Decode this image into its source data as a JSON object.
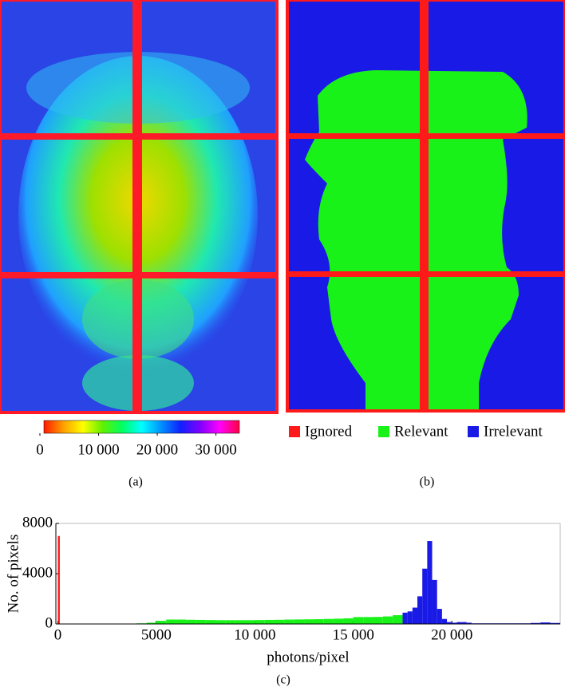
{
  "chart_data": [
    {
      "type": "colorbar",
      "caption": "(a)",
      "xlim": [
        0,
        34000
      ],
      "xticks": [
        0,
        {
          "value": 10000,
          "label": "10 000"
        },
        {
          "value": 20000,
          "label": "20 000"
        },
        {
          "value": 30000,
          "label": "30 000"
        }
      ],
      "colors": [
        "#ff1a00",
        "#ffa000",
        "#ffff00",
        "#60f000",
        "#00ff60",
        "#00ffff",
        "#0090ff",
        "#1020ff",
        "#8000ff",
        "#ff00ff",
        "#ff0040"
      ]
    },
    {
      "type": "mask",
      "caption": "(b)",
      "series": [
        {
          "name": "Ignored",
          "color": "#ff1a1a"
        },
        {
          "name": "Relevant",
          "color": "#19f219"
        },
        {
          "name": "Irrelevant",
          "color": "#1a1ae6"
        }
      ]
    },
    {
      "type": "histogram",
      "caption": "(c)",
      "xlabel": "photons/pixel",
      "ylabel": "No. of pixels",
      "xlim": [
        -100,
        25500
      ],
      "ylim": [
        0,
        8000
      ],
      "xticks": [
        0,
        5000,
        {
          "value": 10000,
          "label": "10 000"
        },
        {
          "value": 15000,
          "label": "15 000"
        },
        {
          "value": 20000,
          "label": "20 000"
        }
      ],
      "yticks": [
        0,
        4000,
        8000
      ],
      "series": [
        {
          "name": "Ignored",
          "color": "#ff1a1a",
          "bins": [
            0,
            100
          ],
          "values": [
            7000
          ]
        },
        {
          "name": "Relevant",
          "color": "#19f219",
          "bins": [
            4000,
            4500,
            5000,
            5500,
            6000,
            6500,
            7000,
            7500,
            8000,
            8500,
            9000,
            9500,
            10000,
            10500,
            11000,
            11500,
            12000,
            12500,
            13000,
            13500,
            14000,
            14500,
            15000,
            15500,
            16000,
            16500,
            17000,
            17500
          ],
          "values": [
            50,
            100,
            250,
            350,
            350,
            330,
            320,
            310,
            300,
            300,
            300,
            300,
            310,
            320,
            330,
            350,
            360,
            370,
            380,
            400,
            420,
            450,
            550,
            550,
            560,
            600,
            700
          ]
        },
        {
          "name": "Irrelevant",
          "color": "#1a1ae6",
          "bins": [
            17500,
            17750,
            18000,
            18250,
            18500,
            18750,
            19000,
            19250,
            19500,
            19750,
            20000,
            20250,
            20500,
            20750,
            21000,
            21500,
            22000,
            22500,
            23000,
            23500,
            24000,
            24500,
            25000,
            25500
          ],
          "values": [
            900,
            1000,
            1300,
            2200,
            4400,
            6600,
            3500,
            1200,
            400,
            150,
            100,
            150,
            150,
            100,
            50,
            50,
            50,
            50,
            50,
            50,
            80,
            120,
            80
          ]
        }
      ]
    }
  ]
}
